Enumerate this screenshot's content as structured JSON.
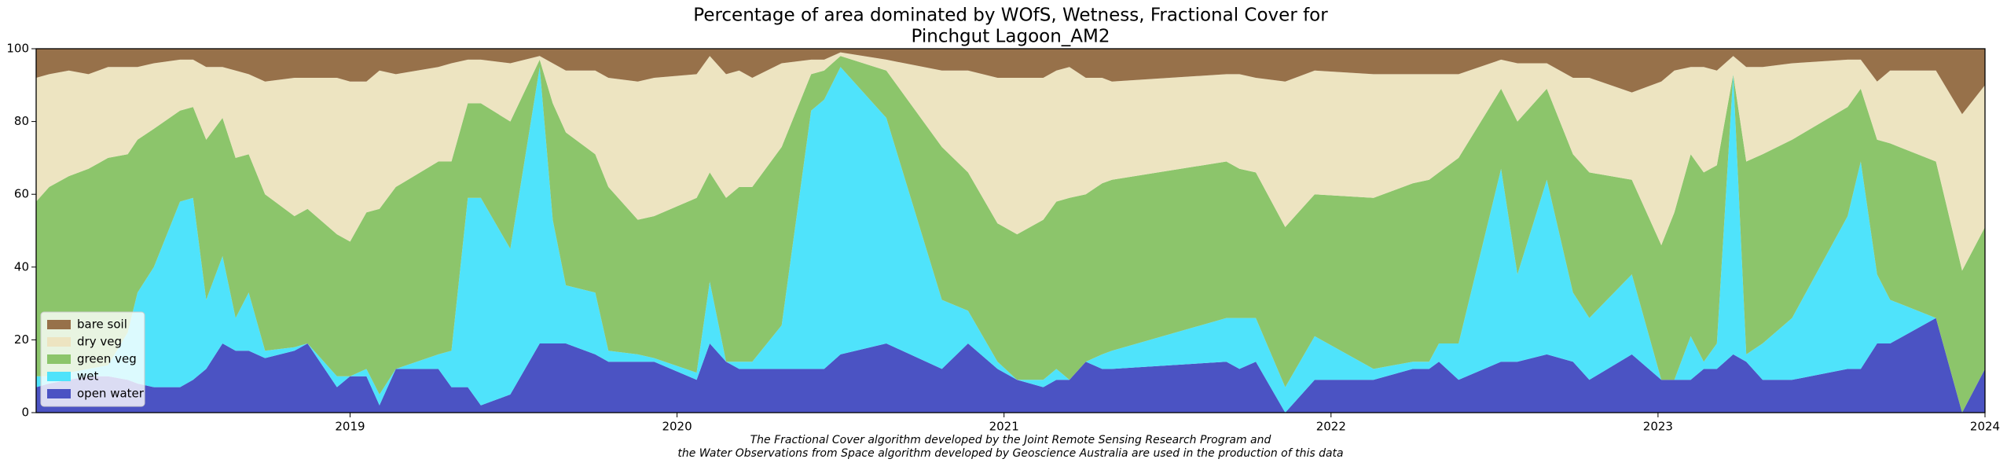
{
  "chart_data": {
    "type": "stacked_area",
    "title": [
      "Percentage of area dominated by WOfS, Wetness, Fractional Cover for",
      "Pinchgut Lagoon_AM2"
    ],
    "annotation": [
      "The Fractional Cover algorithm developed by the Joint Remote Sensing Research Program and",
      "the Water Observations from Space algorithm developed by Geoscience Australia are used in the production of this data"
    ],
    "x": [
      2018.04,
      2018.08,
      2018.14,
      2018.2,
      2018.26,
      2018.32,
      2018.35,
      2018.4,
      2018.48,
      2018.52,
      2018.56,
      2018.61,
      2018.65,
      2018.69,
      2018.74,
      2018.83,
      2018.87,
      2018.96,
      2019.0,
      2019.05,
      2019.09,
      2019.14,
      2019.27,
      2019.31,
      2019.36,
      2019.4,
      2019.49,
      2019.58,
      2019.62,
      2019.66,
      2019.75,
      2019.79,
      2019.88,
      2019.93,
      2020.06,
      2020.1,
      2020.15,
      2020.19,
      2020.23,
      2020.32,
      2020.41,
      2020.45,
      2020.5,
      2020.64,
      2020.81,
      2020.89,
      2020.98,
      2021.04,
      2021.12,
      2021.16,
      2021.2,
      2021.25,
      2021.3,
      2021.33,
      2021.68,
      2021.72,
      2021.77,
      2021.86,
      2021.95,
      2022.13,
      2022.25,
      2022.3,
      2022.33,
      2022.39,
      2022.52,
      2022.57,
      2022.66,
      2022.74,
      2022.79,
      2022.92,
      2023.01,
      2023.05,
      2023.1,
      2023.14,
      2023.18,
      2023.23,
      2023.27,
      2023.32,
      2023.41,
      2023.58,
      2023.62,
      2023.67,
      2023.71,
      2023.85,
      2023.93,
      2024.0
    ],
    "series": [
      {
        "name": "bare soil",
        "color": "#97714a",
        "values": [
          8,
          7,
          6,
          7,
          5,
          5,
          5,
          4,
          3,
          3,
          5,
          5,
          6,
          7,
          9,
          8,
          8,
          8,
          9,
          9,
          6,
          7,
          5,
          4,
          3,
          3,
          4,
          2,
          4,
          6,
          6,
          8,
          9,
          8,
          7,
          2,
          7,
          6,
          8,
          4,
          3,
          3,
          1,
          3,
          6,
          6,
          8,
          8,
          8,
          6,
          5,
          8,
          8,
          9,
          7,
          7,
          8,
          9,
          6,
          7,
          7,
          7,
          7,
          7,
          3,
          4,
          4,
          8,
          8,
          12,
          9,
          6,
          5,
          5,
          6,
          2,
          5,
          5,
          4,
          3,
          3,
          9,
          6,
          6,
          18,
          10
        ]
      },
      {
        "name": "dry veg",
        "color": "#ede4c1",
        "values": [
          34,
          31,
          29,
          26,
          25,
          24,
          20,
          18,
          14,
          13,
          20,
          14,
          24,
          22,
          31,
          38,
          36,
          43,
          44,
          36,
          38,
          31,
          26,
          27,
          12,
          12,
          16,
          1,
          11,
          17,
          23,
          30,
          38,
          38,
          34,
          32,
          34,
          32,
          30,
          23,
          4,
          3,
          1,
          3,
          21,
          28,
          40,
          43,
          39,
          36,
          36,
          32,
          29,
          27,
          24,
          26,
          26,
          40,
          34,
          34,
          30,
          29,
          27,
          23,
          8,
          16,
          7,
          21,
          26,
          24,
          45,
          39,
          24,
          29,
          26,
          5,
          26,
          24,
          21,
          13,
          8,
          16,
          20,
          25,
          43,
          39
        ]
      },
      {
        "name": "green veg",
        "color": "#8cc56b",
        "values": [
          48,
          52,
          54,
          55,
          57,
          49,
          42,
          38,
          25,
          25,
          44,
          38,
          44,
          38,
          43,
          36,
          37,
          39,
          37,
          43,
          51,
          50,
          53,
          52,
          26,
          26,
          35,
          2,
          32,
          42,
          38,
          45,
          37,
          39,
          48,
          30,
          45,
          48,
          48,
          49,
          10,
          8,
          3,
          13,
          42,
          38,
          38,
          40,
          44,
          46,
          50,
          46,
          47,
          47,
          43,
          41,
          40,
          44,
          39,
          47,
          49,
          50,
          47,
          51,
          22,
          42,
          25,
          38,
          40,
          26,
          37,
          46,
          50,
          52,
          49,
          0,
          53,
          52,
          49,
          30,
          20,
          37,
          43,
          43,
          39,
          39
        ]
      },
      {
        "name": "wet",
        "color": "#4fe3fb",
        "values": [
          3,
          2,
          2,
          2,
          3,
          13,
          25,
          33,
          51,
          50,
          19,
          24,
          9,
          16,
          2,
          1,
          0,
          3,
          0,
          2,
          3,
          0,
          4,
          10,
          52,
          57,
          40,
          76,
          34,
          16,
          17,
          3,
          2,
          1,
          2,
          17,
          0,
          2,
          2,
          12,
          71,
          74,
          79,
          62,
          19,
          9,
          2,
          0,
          2,
          3,
          0,
          0,
          4,
          5,
          12,
          14,
          12,
          7,
          12,
          3,
          2,
          2,
          5,
          10,
          53,
          24,
          48,
          19,
          17,
          22,
          0,
          0,
          12,
          2,
          7,
          77,
          2,
          10,
          17,
          42,
          57,
          19,
          12,
          0,
          0,
          0
        ]
      },
      {
        "name": "open water",
        "color": "#4b53c3",
        "values": [
          7,
          8,
          9,
          10,
          10,
          9,
          8,
          7,
          7,
          9,
          12,
          19,
          17,
          17,
          15,
          17,
          19,
          7,
          10,
          10,
          2,
          12,
          12,
          7,
          7,
          2,
          5,
          19,
          19,
          19,
          16,
          14,
          14,
          14,
          9,
          19,
          14,
          12,
          12,
          12,
          12,
          12,
          16,
          19,
          12,
          19,
          12,
          9,
          7,
          9,
          9,
          14,
          12,
          12,
          14,
          12,
          14,
          0,
          9,
          9,
          12,
          12,
          14,
          9,
          14,
          14,
          16,
          14,
          9,
          16,
          9,
          9,
          9,
          12,
          12,
          16,
          14,
          9,
          9,
          12,
          12,
          19,
          19,
          26,
          0,
          12
        ]
      }
    ],
    "xlim": [
      2018.04,
      2024.0
    ],
    "xticks": [
      2019,
      2020,
      2021,
      2022,
      2023,
      2024
    ],
    "ylim": [
      0,
      100
    ],
    "yticks": [
      0,
      20,
      40,
      60,
      80,
      100
    ],
    "legend": "lower left"
  }
}
